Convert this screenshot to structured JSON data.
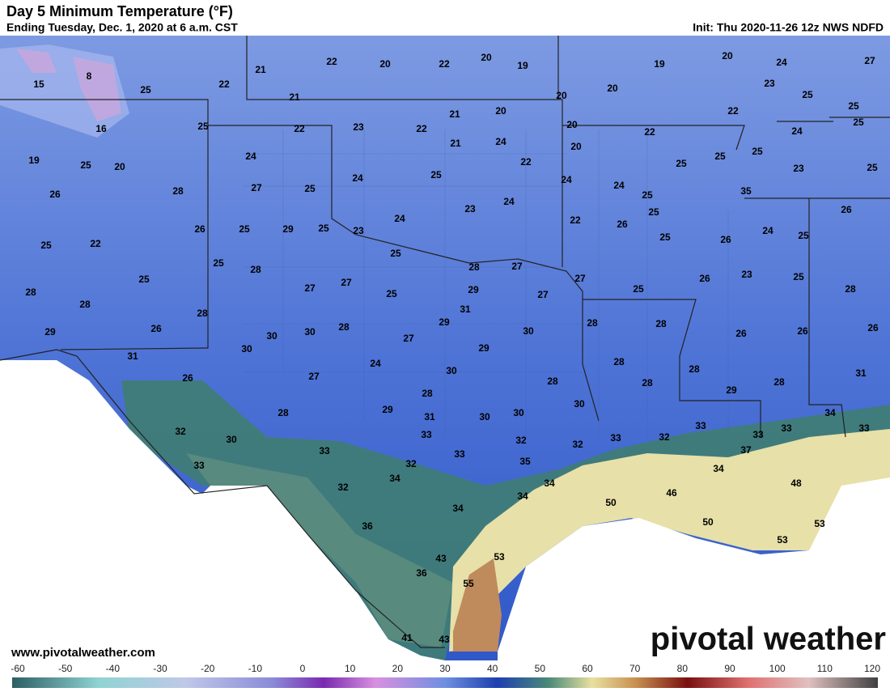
{
  "header": {
    "title": "Day 5 Minimum Temperature (°F)",
    "subtitle": "Ending Tuesday, Dec. 1, 2020 at 6 a.m. CST",
    "init": "Init: Thu 2020-11-26 12z NWS NDFD"
  },
  "footer": {
    "website": "www.pivotalweather.com",
    "logo": "pivotal weather"
  },
  "colorbar": {
    "ticks": [
      -60,
      -50,
      -40,
      -30,
      -20,
      -10,
      0,
      10,
      20,
      30,
      40,
      50,
      60,
      70,
      80,
      90,
      100,
      110,
      120
    ]
  },
  "temperatures": [
    15,
    8,
    25,
    22,
    21,
    22,
    20,
    22,
    20,
    19,
    19,
    20,
    24,
    27,
    21,
    20,
    20,
    23,
    25,
    25,
    16,
    25,
    22,
    23,
    21,
    20,
    22,
    21,
    24,
    20,
    20,
    22,
    22,
    24,
    25,
    19,
    25,
    20,
    24,
    22,
    25,
    25,
    25,
    23,
    25,
    26,
    28,
    27,
    25,
    24,
    25,
    24,
    24,
    25,
    35,
    24,
    23,
    25,
    22,
    26,
    25,
    29,
    25,
    23,
    24,
    22,
    26,
    25,
    26,
    24,
    25,
    25,
    26,
    25,
    28,
    25,
    28,
    27,
    25,
    28,
    28,
    27,
    27,
    25,
    29,
    27,
    27,
    26,
    23,
    25,
    28,
    25,
    29,
    26,
    28,
    31,
    29,
    28,
    30,
    30,
    28,
    28,
    26,
    26,
    26,
    30,
    27,
    29,
    31,
    30,
    24,
    30,
    27,
    26,
    28,
    28,
    28,
    28,
    28,
    31,
    29,
    28,
    28,
    29,
    31,
    30,
    30,
    30,
    32,
    30,
    33,
    32,
    32,
    33,
    32,
    33,
    33,
    37,
    33,
    34,
    33,
    33,
    33,
    33,
    32,
    35,
    34,
    32,
    34,
    34,
    34,
    46,
    48,
    50,
    34,
    36,
    50,
    53,
    53,
    53,
    43,
    36,
    55,
    41,
    43
  ]
}
